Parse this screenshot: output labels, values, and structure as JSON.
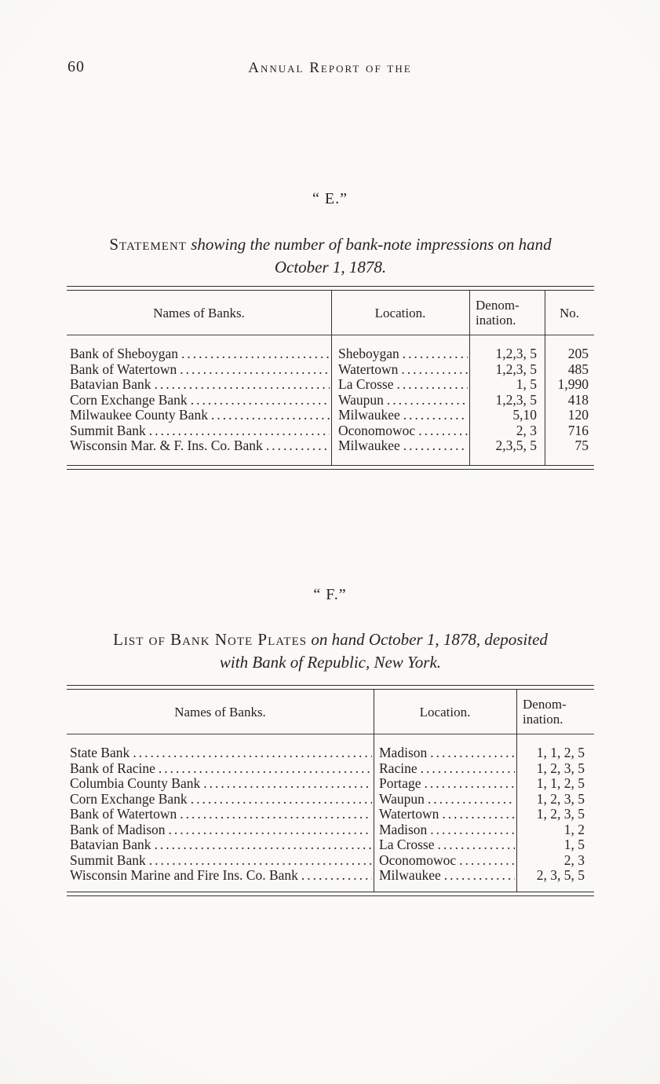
{
  "page": {
    "number": "60",
    "running_title": "Annual Report of the"
  },
  "leader": "..........................................................................................",
  "section_e": {
    "title": "“ E.”",
    "caption_lead": "Statement",
    "caption_rest": " showing the number of bank-note impressions on hand",
    "caption_line2": "October 1, 1878.",
    "table": {
      "headers": {
        "names": "Names of Banks.",
        "location": "Location.",
        "denomination_line1": "Denom-",
        "denomination_line2": "ination.",
        "no": "No."
      },
      "rows": [
        {
          "name": "Bank of Sheboygan",
          "location": "Sheboygan",
          "denomination": "1,2,3, 5",
          "no": "205"
        },
        {
          "name": "Bank of Watertown",
          "location": "Watertown",
          "denomination": "1,2,3, 5",
          "no": "485"
        },
        {
          "name": "Batavian Bank",
          "location": "La Crosse",
          "denomination": "1, 5",
          "no": "1,990"
        },
        {
          "name": "Corn Exchange Bank",
          "location": "Waupun",
          "denomination": "1,2,3, 5",
          "no": "418"
        },
        {
          "name": "Milwaukee County Bank",
          "location": "Milwaukee",
          "denomination": "5,10",
          "no": "120"
        },
        {
          "name": "Summit Bank",
          "location": "Oconomowoc",
          "denomination": "2, 3",
          "no": "716"
        },
        {
          "name": "Wisconsin Mar. & F. Ins. Co. Bank",
          "location": "Milwaukee",
          "denomination": "2,3,5, 5",
          "no": "75"
        }
      ]
    }
  },
  "section_f": {
    "title": "“ F.”",
    "caption_lead": "List of Bank Note Plates",
    "caption_rest": " on hand  October 1, 1878, deposited",
    "caption_line2": "with Bank of Republic, New York.",
    "table": {
      "headers": {
        "names": "Names of Banks.",
        "location": "Location.",
        "denomination_line1": "Denom-",
        "denomination_line2": "ination."
      },
      "rows": [
        {
          "name": "State Bank",
          "location": "Madison",
          "denomination": "1, 1, 2, 5"
        },
        {
          "name": "Bank of Racine",
          "location": "Racine",
          "denomination": "1, 2, 3, 5"
        },
        {
          "name": "Columbia County Bank",
          "location": "Portage",
          "denomination": "1, 1, 2, 5"
        },
        {
          "name": "Corn Exchange Bank",
          "location": "Waupun",
          "denomination": "1, 2, 3, 5"
        },
        {
          "name": "Bank of Watertown",
          "location": "Watertown",
          "denomination": "1, 2, 3, 5"
        },
        {
          "name": "Bank of Madison",
          "location": "Madison",
          "denomination": "1, 2"
        },
        {
          "name": "Batavian Bank",
          "location": "La Crosse",
          "denomination": "1, 5"
        },
        {
          "name": "Summit Bank",
          "location": "Oconomowoc",
          "denomination": "2, 3"
        },
        {
          "name": "Wisconsin Marine and Fire Ins. Co. Bank",
          "location": "Milwaukee",
          "denomination": "2, 3, 5, 5"
        }
      ]
    }
  }
}
